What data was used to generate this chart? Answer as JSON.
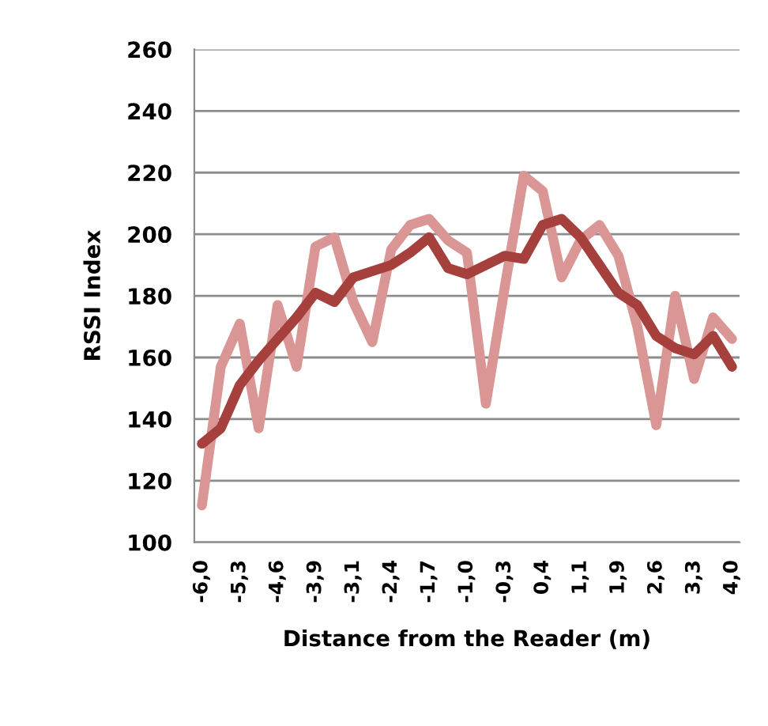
{
  "chart_data": {
    "type": "line",
    "xlabel": "Distance from the Reader (m)",
    "ylabel": "RSSI Index",
    "categories": [
      "-6,0",
      null,
      "-5,3",
      null,
      "-4,6",
      null,
      "-3,9",
      null,
      "-3,1",
      null,
      "-2,4",
      null,
      "-1,7",
      null,
      "-1,0",
      null,
      "-0,3",
      null,
      "0,4",
      null,
      "1,1",
      null,
      "1,9",
      null,
      "2,6",
      null,
      "3,3",
      null,
      "4,0"
    ],
    "series": [
      {
        "color": "#d99694",
        "values": [
          112,
          157,
          171,
          137,
          177,
          157,
          196,
          199,
          178,
          165,
          195,
          203,
          205,
          198,
          194,
          145,
          183,
          219,
          214,
          186,
          198,
          203,
          193,
          170,
          138,
          180,
          153,
          173,
          166
        ]
      },
      {
        "color": "#a5403d",
        "values": [
          132,
          137,
          151,
          159,
          166,
          173,
          181,
          178,
          186,
          188,
          190,
          194,
          199,
          189,
          187,
          190,
          193,
          192,
          203,
          205,
          199,
          190,
          181,
          177,
          167,
          163,
          161,
          167,
          157
        ]
      }
    ],
    "ylim": [
      100,
      260
    ],
    "yticks": [
      100,
      120,
      140,
      160,
      180,
      200,
      220,
      240,
      260
    ],
    "grid": "y",
    "marker": "none",
    "line_style": "solid",
    "legend": false
  }
}
